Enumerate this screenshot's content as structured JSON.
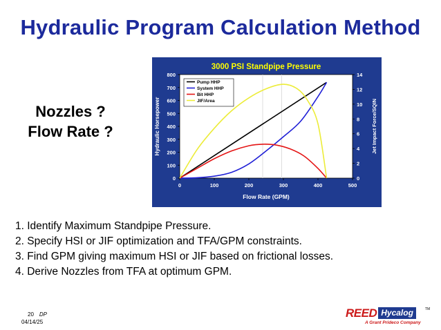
{
  "slide": {
    "title": "Hydraulic Program Calculation Method",
    "side_label_line1": "Nozzles ?",
    "side_label_line2": "Flow Rate ?",
    "steps": [
      "1. Identify Maximum Standpipe Pressure.",
      "2. Specify HSI or JIF optimization and TFA/GPM constraints.",
      "3. Find GPM giving maximum HSI or JIF based on frictional losses.",
      "4. Derive Nozzles from TFA at optimum GPM."
    ],
    "footer": {
      "page_number": "20",
      "author": "DP",
      "date": "04/14/25"
    },
    "logo": {
      "brand": "REED",
      "product": "Hycalog",
      "trademark": "TM",
      "tagline": "A Grant Prideco Company"
    }
  },
  "chart_data": {
    "type": "line",
    "title": "3000 PSI Standpipe Pressure",
    "xlabel": "Flow Rate (GPM)",
    "ylabel": "Hydraulic Horsepower",
    "y2label": "Jet Impact Force/SQIN",
    "xlim": [
      0,
      500
    ],
    "ylim": [
      0,
      800
    ],
    "y2lim": [
      0,
      14
    ],
    "xticks": [
      0,
      100,
      200,
      300,
      400,
      500
    ],
    "yticks": [
      0,
      100,
      200,
      300,
      400,
      500,
      600,
      700,
      800
    ],
    "y2ticks": [
      0,
      2,
      4,
      6,
      8,
      10,
      12,
      14
    ],
    "legend_position": "top-left",
    "plot_background": "#ffffff",
    "frame_background": "#1f3b90",
    "grid": false,
    "reference_lines": [
      {
        "x": 240,
        "color": "#dddddd"
      },
      {
        "x": 295,
        "color": "#dddddd"
      }
    ],
    "series": [
      {
        "name": "Pump HHP",
        "axis": "left",
        "color": "#000000",
        "x": [
          0,
          425
        ],
        "y": [
          0,
          740
        ]
      },
      {
        "name": "System HHP",
        "axis": "left",
        "color": "#1f1fd6",
        "x": [
          0,
          50,
          100,
          150,
          200,
          250,
          300,
          350,
          400,
          425
        ],
        "y": [
          0,
          3,
          15,
          45,
          110,
          210,
          320,
          440,
          630,
          740
        ]
      },
      {
        "name": "Bit HHP",
        "axis": "left",
        "color": "#e41414",
        "x": [
          0,
          50,
          100,
          150,
          200,
          240,
          280,
          320,
          360,
          400,
          425
        ],
        "y": [
          0,
          75,
          150,
          210,
          250,
          262,
          255,
          225,
          170,
          75,
          0
        ]
      },
      {
        "name": "JIF/Area",
        "axis": "left",
        "color": "#ecec38",
        "x": [
          0,
          50,
          100,
          150,
          200,
          250,
          300,
          340,
          370,
          400,
          425
        ],
        "y": [
          0,
          220,
          385,
          520,
          620,
          690,
          725,
          690,
          600,
          420,
          0
        ]
      }
    ]
  }
}
